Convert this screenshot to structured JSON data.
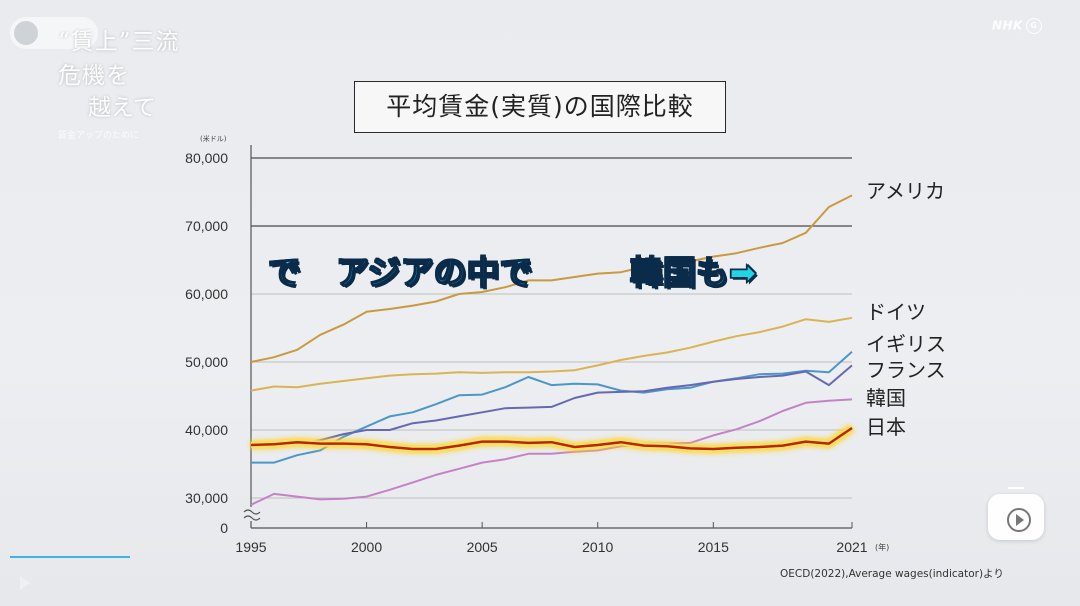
{
  "video": {
    "show_title_line1": "“賃上”三流危機を",
    "show_title_line2": "越えて",
    "show_subtitle": "賃金アップのために",
    "channel_logo": "NHK",
    "caption_1": "で",
    "caption_2": "アジアの中で",
    "caption_3": "韓国も➡",
    "source": "OECD(2022),Average wages(indicator)より"
  },
  "chart_data": {
    "type": "line",
    "title": "平均賃金(実質)の国際比較",
    "y_unit": "(米ドル)",
    "x_unit": "(年)",
    "ylim": [
      28000,
      80000
    ],
    "xlim": [
      1995,
      2021
    ],
    "x_tick_labels": [
      "1995",
      "2000",
      "2005",
      "2010",
      "2015",
      "2021"
    ],
    "x_ticks": [
      1995,
      2000,
      2005,
      2010,
      2015,
      2021
    ],
    "y_tick_labels": [
      "80,000",
      "70,000",
      "60,000",
      "50,000",
      "40,000",
      "30,000",
      "0"
    ],
    "y_ticks": [
      80000,
      70000,
      60000,
      50000,
      40000,
      30000
    ],
    "y_zero_label": "0",
    "y_axis_break": true,
    "grid": "horizontal",
    "x": [
      1995,
      1996,
      1997,
      1998,
      1999,
      2000,
      2001,
      2002,
      2003,
      2004,
      2005,
      2006,
      2007,
      2008,
      2009,
      2010,
      2011,
      2012,
      2013,
      2014,
      2015,
      2016,
      2017,
      2018,
      2019,
      2020,
      2021
    ],
    "series": [
      {
        "name": "アメリカ",
        "color": "#c99a3e",
        "values": [
          50000,
          50700,
          51800,
          54000,
          55500,
          57400,
          57800,
          58300,
          58900,
          60000,
          60300,
          61000,
          62000,
          62000,
          62500,
          63000,
          63200,
          64000,
          64200,
          64800,
          65500,
          66000,
          66800,
          67500,
          69000,
          72800,
          74500
        ]
      },
      {
        "name": "ドイツ",
        "color": "#d9b452",
        "values": [
          45800,
          46400,
          46300,
          46800,
          47200,
          47600,
          48000,
          48200,
          48300,
          48500,
          48400,
          48500,
          48500,
          48600,
          48800,
          49500,
          50300,
          50900,
          51400,
          52100,
          53000,
          53800,
          54400,
          55200,
          56300,
          55900,
          56500
        ]
      },
      {
        "name": "イギリス",
        "color": "#4b97c9",
        "values": [
          35200,
          35200,
          36300,
          37000,
          39000,
          40500,
          42000,
          42600,
          43800,
          45100,
          45200,
          46300,
          47800,
          46600,
          46800,
          46700,
          45800,
          45500,
          46000,
          46200,
          47100,
          47600,
          48200,
          48300,
          48700,
          48500,
          51500
        ]
      },
      {
        "name": "フランス",
        "color": "#6668b0",
        "values": [
          37600,
          37800,
          38000,
          38500,
          39400,
          40000,
          40000,
          41000,
          41400,
          42000,
          42600,
          43200,
          43300,
          43400,
          44700,
          45500,
          45600,
          45700,
          46200,
          46600,
          47100,
          47500,
          47800,
          48000,
          48600,
          46600,
          49500
        ]
      },
      {
        "name": "韓国",
        "color": "#c483c6",
        "values": [
          29000,
          30600,
          30200,
          29800,
          29900,
          30200,
          31200,
          32300,
          33400,
          34300,
          35200,
          35700,
          36500,
          36500,
          36800,
          37000,
          37600,
          38000,
          38000,
          38100,
          39200,
          40100,
          41300,
          42800,
          44000,
          44300,
          44500
        ]
      },
      {
        "name": "日本",
        "color": "#b8260e",
        "values": [
          37800,
          37900,
          38200,
          38000,
          38000,
          37900,
          37500,
          37200,
          37200,
          37700,
          38300,
          38300,
          38100,
          38200,
          37500,
          37800,
          38200,
          37700,
          37600,
          37300,
          37200,
          37400,
          37500,
          37700,
          38300,
          38000,
          40300
        ]
      }
    ]
  }
}
